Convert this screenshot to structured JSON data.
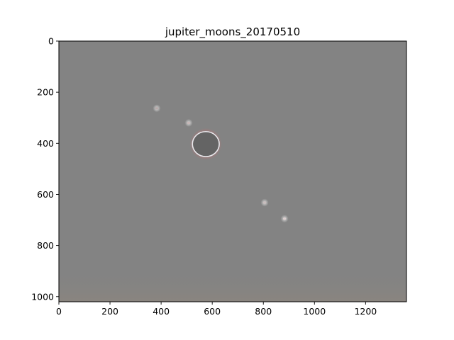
{
  "figure": {
    "title": "jupiter_moons_20170510",
    "image": {
      "width": 1360,
      "height": 1020,
      "background_color": "#838383",
      "bottom_band_color": "#868381",
      "xlim": [
        0,
        1360
      ],
      "ylim": [
        1020,
        0
      ],
      "y_inverted": true,
      "subject": {
        "name": "jupiter",
        "x": 575,
        "y": 403,
        "radius": 50,
        "color": "#646464",
        "ring_color": "#e8e8ec",
        "halo_color": "#a67878"
      },
      "moons": [
        {
          "name": "moon-1",
          "x": 383,
          "y": 263,
          "radius": 11,
          "color": "#b8a9a9"
        },
        {
          "name": "moon-2",
          "x": 508,
          "y": 320,
          "radius": 11,
          "color": "#c7b7b7"
        },
        {
          "name": "moon-3",
          "x": 805,
          "y": 632,
          "radius": 11,
          "color": "#c9bdbd"
        },
        {
          "name": "moon-4",
          "x": 883,
          "y": 695,
          "radius": 11,
          "color": "#ddcfcf"
        }
      ]
    },
    "x_ticks": [
      {
        "value": 0,
        "label": "0"
      },
      {
        "value": 200,
        "label": "200"
      },
      {
        "value": 400,
        "label": "400"
      },
      {
        "value": 600,
        "label": "600"
      },
      {
        "value": 800,
        "label": "800"
      },
      {
        "value": 1000,
        "label": "1000"
      },
      {
        "value": 1200,
        "label": "1200"
      }
    ],
    "y_ticks": [
      {
        "value": 0,
        "label": "0"
      },
      {
        "value": 200,
        "label": "200"
      },
      {
        "value": 400,
        "label": "400"
      },
      {
        "value": 600,
        "label": "600"
      },
      {
        "value": 800,
        "label": "800"
      },
      {
        "value": 1000,
        "label": "1000"
      }
    ]
  }
}
